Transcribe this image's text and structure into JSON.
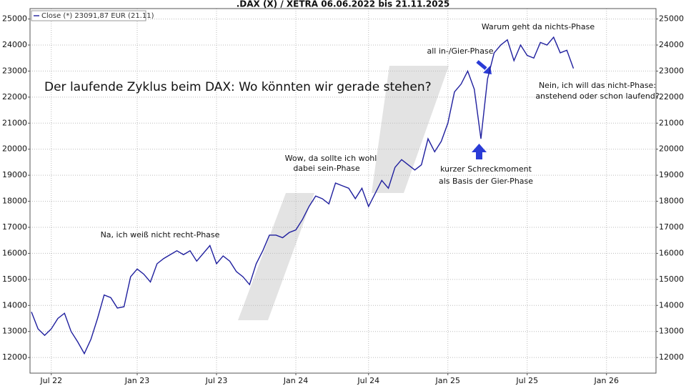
{
  "chart_data": {
    "type": "line",
    "title": ".DAX (X) / XETRA 06.06.2022 bis 21.11.2025",
    "categories": [
      null,
      null,
      null,
      "Jul 22",
      null,
      null,
      null,
      null,
      null,
      null,
      null,
      null,
      null,
      null,
      null,
      null,
      "Jan 23",
      null,
      null,
      null,
      null,
      null,
      null,
      null,
      null,
      null,
      null,
      null,
      "Jul 23",
      null,
      null,
      null,
      null,
      null,
      null,
      null,
      null,
      null,
      null,
      null,
      "Jan 24",
      null,
      null,
      null,
      null,
      null,
      null,
      null,
      null,
      null,
      null,
      "Jul 24",
      null,
      null,
      null,
      null,
      null,
      null,
      null,
      null,
      null,
      null,
      null,
      "Jan 25",
      null,
      null,
      null,
      null,
      null,
      null,
      null,
      null,
      null,
      null,
      null,
      "Jul 25",
      null,
      null,
      null,
      null,
      null,
      null,
      null,
      null,
      null,
      null,
      null,
      "Jan 26"
    ],
    "series": [
      {
        "name": "Close (*) 23091,87 EUR (21.11)",
        "color": "#1f1f9e",
        "values": [
          13750,
          13100,
          12850,
          13100,
          13500,
          13700,
          13000,
          12600,
          12150,
          12700,
          13500,
          14400,
          14300,
          13900,
          13950,
          15100,
          15400,
          15200,
          14900,
          15600,
          15800,
          15950,
          16100,
          15950,
          16100,
          15700,
          16000,
          16300,
          15600,
          15900,
          15700,
          15300,
          15100,
          14800,
          15600,
          16100,
          16700,
          16700,
          16600,
          16800,
          16900,
          17300,
          17800,
          18200,
          18100,
          17900,
          18700,
          18600,
          18500,
          18100,
          18500,
          17800,
          18300,
          18800,
          18500,
          19300,
          19600,
          19400,
          19200,
          19400,
          20400,
          19900,
          20300,
          21000,
          22200,
          22500,
          23000,
          22300,
          20400,
          22700,
          23700,
          24000,
          24200,
          23400,
          24000,
          23600,
          23500,
          24100,
          24000,
          24300,
          23700,
          23800,
          23100,
          null,
          null,
          null,
          null,
          null
        ]
      }
    ],
    "ylim": [
      11400,
      25400
    ],
    "yticks": [
      12000,
      13000,
      14000,
      15000,
      16000,
      17000,
      18000,
      19000,
      20000,
      21000,
      22000,
      23000,
      24000,
      25000
    ],
    "grid": true,
    "annotations": [
      "Der laufende Zyklus beim DAX: Wo könnten wir gerade stehen?",
      "Na, ich weiß nicht recht-Phase",
      "Wow, da sollte ich wohl",
      "dabei sein-Phase",
      "all in-/Gier-Phase",
      "Warum geht da nichts-Phase",
      "Nein, ich will das nicht-Phase:",
      "anstehend oder schon laufend?",
      "kurzer Schreckmoment",
      "als Basis der Gier-Phase"
    ]
  }
}
